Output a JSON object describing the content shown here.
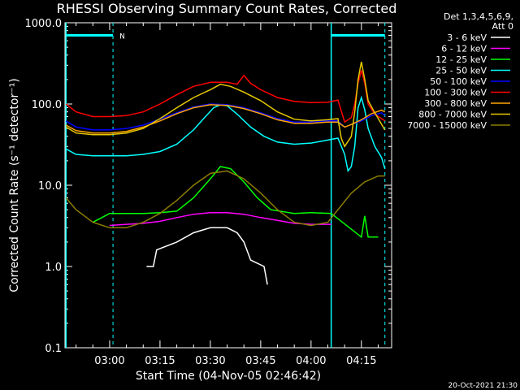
{
  "chart_data": {
    "type": "line",
    "title": "RHESSI Observing Summary Count Rates, Corrected",
    "xlabel": "Start Time (04-Nov-05 02:46:42)",
    "ylabel": "Corrected Count Rate (s⁻¹ detector⁻¹)",
    "footer": "20-Oct-2021 21:30",
    "ylog": true,
    "ylim": [
      0.1,
      1000
    ],
    "xlim": [
      "02:46:42",
      "04:24:00"
    ],
    "yticks": [
      {
        "v": 1000,
        "label": "1000.0"
      },
      {
        "v": 100,
        "label": "100.0"
      },
      {
        "v": 10,
        "label": "10.0"
      },
      {
        "v": 1,
        "label": "1.0"
      },
      {
        "v": 0.1,
        "label": "0.1"
      }
    ],
    "xticks": [
      "03:00",
      "03:15",
      "03:30",
      "03:45",
      "04:00",
      "04:15"
    ],
    "detector_info": [
      "Det 1,3,4,5,6,9,",
      "Att 0"
    ],
    "legend_position": "right",
    "series": [
      {
        "name": "3 - 6 keV",
        "color": "#ffffff",
        "points": [
          [
            "03:11",
            1.0
          ],
          [
            "03:13",
            1.0
          ],
          [
            "03:14",
            1.6
          ],
          [
            "03:20",
            2.0
          ],
          [
            "03:25",
            2.6
          ],
          [
            "03:30",
            3.0
          ],
          [
            "03:35",
            3.0
          ],
          [
            "03:38",
            2.6
          ],
          [
            "03:40",
            2.0
          ],
          [
            "03:42",
            1.2
          ],
          [
            "03:46",
            1.0
          ],
          [
            "03:47",
            0.6
          ]
        ]
      },
      {
        "name": "6 - 12 keV",
        "color": "#ff00ff",
        "points": [
          [
            "03:00",
            3.2
          ],
          [
            "03:05",
            3.3
          ],
          [
            "03:10",
            3.4
          ],
          [
            "03:15",
            3.6
          ],
          [
            "03:20",
            4.0
          ],
          [
            "03:25",
            4.4
          ],
          [
            "03:30",
            4.6
          ],
          [
            "03:35",
            4.6
          ],
          [
            "03:40",
            4.4
          ],
          [
            "03:45",
            4.0
          ],
          [
            "03:50",
            3.7
          ],
          [
            "03:55",
            3.4
          ],
          [
            "04:00",
            3.3
          ],
          [
            "04:06",
            3.3
          ]
        ]
      },
      {
        "name": "12 - 25 keV",
        "color": "#00ff00",
        "points": [
          [
            "02:55",
            3.5
          ],
          [
            "03:00",
            4.5
          ],
          [
            "03:05",
            4.5
          ],
          [
            "03:10",
            4.5
          ],
          [
            "03:15",
            4.6
          ],
          [
            "03:20",
            4.8
          ],
          [
            "03:25",
            7.0
          ],
          [
            "03:30",
            12
          ],
          [
            "03:33",
            17
          ],
          [
            "03:36",
            16
          ],
          [
            "03:40",
            11
          ],
          [
            "03:44",
            7.0
          ],
          [
            "03:48",
            5.0
          ],
          [
            "03:55",
            4.5
          ],
          [
            "04:00",
            4.6
          ],
          [
            "04:06",
            4.5
          ],
          [
            "04:15",
            2.3
          ],
          [
            "04:16",
            4.2
          ],
          [
            "04:17",
            2.3
          ],
          [
            "04:20",
            2.3
          ]
        ]
      },
      {
        "name": "25 - 50 keV",
        "color": "#00ffff",
        "points": [
          [
            "02:47",
            28
          ],
          [
            "02:50",
            24
          ],
          [
            "02:55",
            23
          ],
          [
            "03:00",
            23
          ],
          [
            "03:05",
            23
          ],
          [
            "03:10",
            24
          ],
          [
            "03:15",
            26
          ],
          [
            "03:20",
            32
          ],
          [
            "03:25",
            48
          ],
          [
            "03:28",
            66
          ],
          [
            "03:31",
            90
          ],
          [
            "03:33",
            98
          ],
          [
            "03:35",
            95
          ],
          [
            "03:38",
            75
          ],
          [
            "03:42",
            52
          ],
          [
            "03:46",
            40
          ],
          [
            "03:50",
            34
          ],
          [
            "03:55",
            32
          ],
          [
            "04:00",
            33
          ],
          [
            "04:05",
            36
          ],
          [
            "04:08",
            38
          ],
          [
            "04:10",
            24
          ],
          [
            "04:11",
            15
          ],
          [
            "04:12",
            17
          ],
          [
            "04:13",
            30
          ],
          [
            "04:14",
            90
          ],
          [
            "04:15",
            120
          ],
          [
            "04:16",
            85
          ],
          [
            "04:17",
            50
          ],
          [
            "04:19",
            30
          ],
          [
            "04:21",
            22
          ],
          [
            "04:22",
            16
          ]
        ]
      },
      {
        "name": "50 - 100 keV",
        "color": "#0000ff",
        "points": [
          [
            "02:47",
            62
          ],
          [
            "02:50",
            52
          ],
          [
            "02:55",
            48
          ],
          [
            "03:00",
            48
          ],
          [
            "03:05",
            50
          ],
          [
            "03:10",
            55
          ],
          [
            "03:15",
            65
          ],
          [
            "03:20",
            78
          ],
          [
            "03:25",
            92
          ],
          [
            "03:30",
            100
          ],
          [
            "03:35",
            98
          ],
          [
            "03:40",
            90
          ],
          [
            "03:45",
            78
          ],
          [
            "03:50",
            66
          ],
          [
            "03:55",
            60
          ],
          [
            "04:00",
            60
          ],
          [
            "04:05",
            62
          ],
          [
            "04:08",
            62
          ],
          [
            "04:10",
            52
          ],
          [
            "04:12",
            56
          ],
          [
            "04:15",
            62
          ],
          [
            "04:18",
            72
          ],
          [
            "04:21",
            78
          ],
          [
            "04:22",
            72
          ]
        ]
      },
      {
        "name": "100 - 300 keV",
        "color": "#ff0000",
        "points": [
          [
            "02:47",
            100
          ],
          [
            "02:50",
            80
          ],
          [
            "02:55",
            70
          ],
          [
            "03:00",
            70
          ],
          [
            "03:05",
            72
          ],
          [
            "03:10",
            80
          ],
          [
            "03:15",
            100
          ],
          [
            "03:20",
            130
          ],
          [
            "03:25",
            165
          ],
          [
            "03:30",
            185
          ],
          [
            "03:35",
            185
          ],
          [
            "03:38",
            175
          ],
          [
            "03:40",
            225
          ],
          [
            "03:42",
            180
          ],
          [
            "03:45",
            150
          ],
          [
            "03:50",
            120
          ],
          [
            "03:55",
            108
          ],
          [
            "04:00",
            104
          ],
          [
            "04:05",
            105
          ],
          [
            "04:08",
            112
          ],
          [
            "04:10",
            60
          ],
          [
            "04:12",
            68
          ],
          [
            "04:13",
            100
          ],
          [
            "04:14",
            180
          ],
          [
            "04:15",
            260
          ],
          [
            "04:16",
            180
          ],
          [
            "04:17",
            100
          ],
          [
            "04:19",
            75
          ],
          [
            "04:22",
            62
          ]
        ]
      },
      {
        "name": "300 - 800 keV",
        "color": "#ffa500",
        "points": [
          [
            "02:47",
            55
          ],
          [
            "02:50",
            47
          ],
          [
            "02:55",
            44
          ],
          [
            "03:00",
            44
          ],
          [
            "03:05",
            46
          ],
          [
            "03:10",
            52
          ],
          [
            "03:15",
            62
          ],
          [
            "03:20",
            76
          ],
          [
            "03:25",
            90
          ],
          [
            "03:30",
            98
          ],
          [
            "03:35",
            96
          ],
          [
            "03:40",
            88
          ],
          [
            "03:45",
            76
          ],
          [
            "03:50",
            64
          ],
          [
            "03:55",
            58
          ],
          [
            "04:00",
            58
          ],
          [
            "04:05",
            60
          ],
          [
            "04:08",
            60
          ],
          [
            "04:10",
            52
          ],
          [
            "04:12",
            56
          ],
          [
            "04:15",
            64
          ],
          [
            "04:18",
            76
          ],
          [
            "04:21",
            84
          ],
          [
            "04:22",
            80
          ]
        ]
      },
      {
        "name": "800 - 7000 keV",
        "color": "#e6c800",
        "points": [
          [
            "02:47",
            52
          ],
          [
            "02:50",
            44
          ],
          [
            "02:55",
            42
          ],
          [
            "03:00",
            42
          ],
          [
            "03:05",
            44
          ],
          [
            "03:10",
            50
          ],
          [
            "03:15",
            66
          ],
          [
            "03:20",
            90
          ],
          [
            "03:25",
            120
          ],
          [
            "03:30",
            150
          ],
          [
            "03:33",
            175
          ],
          [
            "03:36",
            165
          ],
          [
            "03:40",
            140
          ],
          [
            "03:45",
            110
          ],
          [
            "03:50",
            80
          ],
          [
            "03:55",
            65
          ],
          [
            "04:00",
            62
          ],
          [
            "04:05",
            64
          ],
          [
            "04:08",
            66
          ],
          [
            "04:09",
            38
          ],
          [
            "04:10",
            30
          ],
          [
            "04:12",
            40
          ],
          [
            "04:13",
            80
          ],
          [
            "04:14",
            200
          ],
          [
            "04:15",
            330
          ],
          [
            "04:16",
            200
          ],
          [
            "04:17",
            110
          ],
          [
            "04:19",
            78
          ],
          [
            "04:22",
            48
          ]
        ]
      },
      {
        "name": "7000 - 15000 keV",
        "color": "#8b7d00",
        "points": [
          [
            "02:47",
            7.0
          ],
          [
            "02:50",
            5.0
          ],
          [
            "02:55",
            3.5
          ],
          [
            "03:00",
            3.0
          ],
          [
            "03:05",
            3.0
          ],
          [
            "03:10",
            3.5
          ],
          [
            "03:15",
            4.5
          ],
          [
            "03:20",
            6.5
          ],
          [
            "03:25",
            10
          ],
          [
            "03:30",
            14
          ],
          [
            "03:35",
            15
          ],
          [
            "03:40",
            12
          ],
          [
            "03:45",
            8.0
          ],
          [
            "03:50",
            5.0
          ],
          [
            "03:55",
            3.5
          ],
          [
            "04:00",
            3.2
          ],
          [
            "04:05",
            3.5
          ],
          [
            "04:08",
            5.0
          ],
          [
            "04:12",
            8.0
          ],
          [
            "04:16",
            11
          ],
          [
            "04:20",
            13
          ],
          [
            "04:22",
            13
          ]
        ]
      }
    ],
    "bars": [
      {
        "label": "N",
        "start": "03:01",
        "end": "04:05"
      },
      {
        "start": "02:47",
        "end": "03:01",
        "level": 700
      },
      {
        "start": "04:06",
        "end": "04:22",
        "level": 700
      }
    ],
    "dashed_markers": [
      "03:01",
      "04:22"
    ],
    "solid_markers": [
      "02:47",
      "04:06"
    ],
    "marker_color": "#00ffff"
  }
}
